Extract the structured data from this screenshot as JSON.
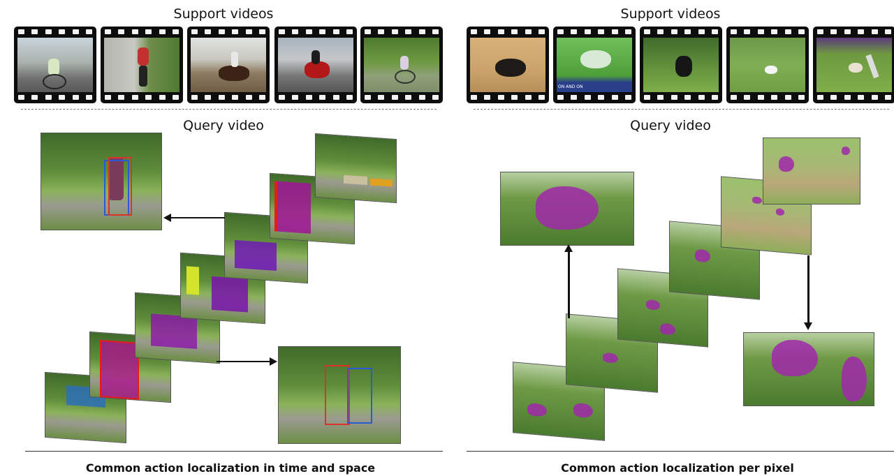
{
  "left": {
    "support_heading": "Support videos",
    "query_heading": "Query video",
    "caption": "Common action localization in time and space"
  },
  "right": {
    "support_heading": "Support videos",
    "query_heading": "Query video",
    "caption": "Common action localization per pixel",
    "tv_banner": "ON AND ON"
  },
  "colors": {
    "mask_purple": "#a028aa",
    "box_red": "#e0302a",
    "box_blue": "#2a5ad8",
    "tube_red": "#e81a1a",
    "tube_blue": "#2233ee"
  }
}
